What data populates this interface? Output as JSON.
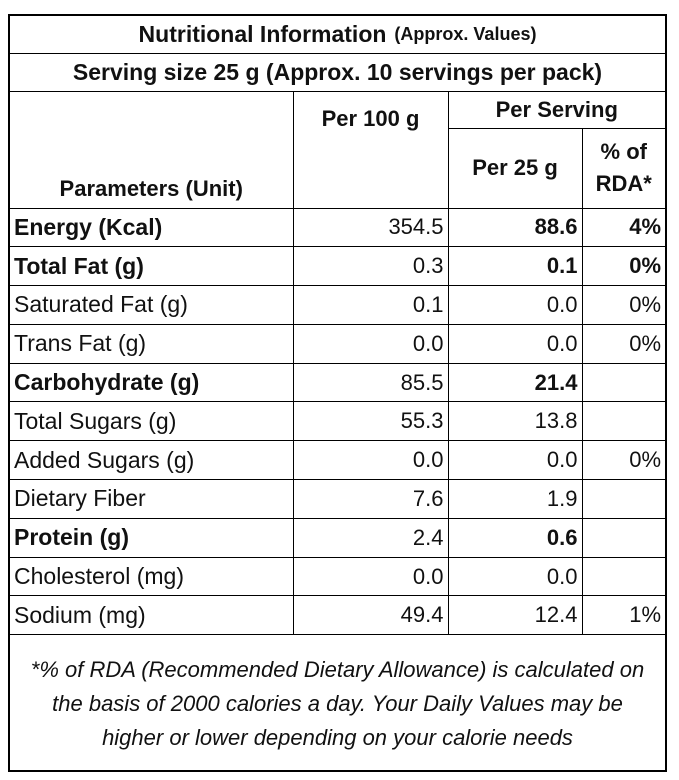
{
  "title": {
    "main": "Nutritional Information",
    "note": "(Approx. Values)"
  },
  "serving": "Serving size 25 g (Approx. 10 servings per pack)",
  "headers": {
    "parameters": "Parameters (Unit)",
    "per100": "Per 100 g",
    "perServing": "Per Serving",
    "per25": "Per 25 g",
    "rda_line1": "% of",
    "rda_line2": "RDA*"
  },
  "rows": [
    {
      "param": "Energy (Kcal)",
      "per100": "354.5",
      "per25": "88.6",
      "rda": "4%",
      "bold": true
    },
    {
      "param": "Total Fat (g)",
      "per100": "0.3",
      "per25": "0.1",
      "rda": "0%",
      "bold": true
    },
    {
      "param": "Saturated Fat (g)",
      "per100": "0.1",
      "per25": "0.0",
      "rda": "0%",
      "bold": false
    },
    {
      "param": "Trans Fat (g)",
      "per100": "0.0",
      "per25": "0.0",
      "rda": "0%",
      "bold": false
    },
    {
      "param": "Carbohydrate (g)",
      "per100": "85.5",
      "per25": "21.4",
      "rda": "",
      "bold": true
    },
    {
      "param": "Total Sugars (g)",
      "per100": "55.3",
      "per25": "13.8",
      "rda": "",
      "bold": false
    },
    {
      "param": "Added Sugars (g)",
      "per100": "0.0",
      "per25": "0.0",
      "rda": "0%",
      "bold": false
    },
    {
      "param": "Dietary Fiber",
      "per100": "7.6",
      "per25": "1.9",
      "rda": "",
      "bold": false
    },
    {
      "param": "Protein (g)",
      "per100": "2.4",
      "per25": "0.6",
      "rda": "",
      "bold": true
    },
    {
      "param": "Cholesterol (mg)",
      "per100": "0.0",
      "per25": "0.0",
      "rda": "",
      "bold": false
    },
    {
      "param": "Sodium (mg)",
      "per100": "49.4",
      "per25": "12.4",
      "rda": "1%",
      "bold": false
    }
  ],
  "footer": "*% of RDA (Recommended Dietary Allowance) is calculated on the basis of 2000 calories a day. Your Daily Values may be higher or lower depending on your calorie needs"
}
